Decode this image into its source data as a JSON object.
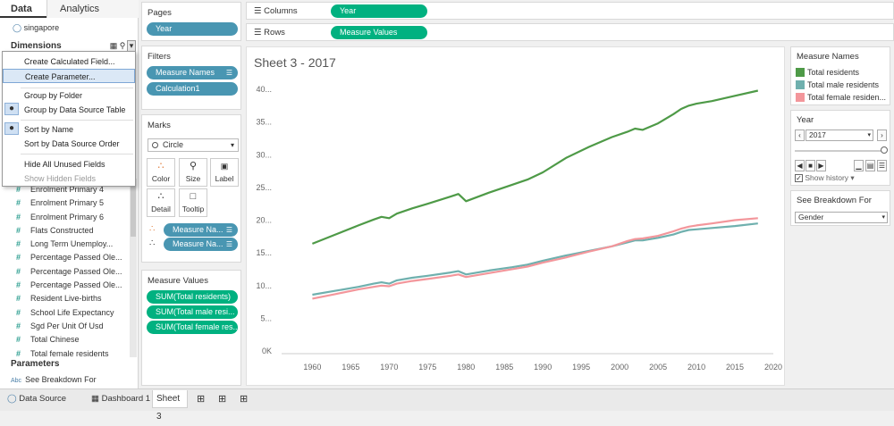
{
  "data_pane": {
    "tabs": [
      "Data",
      "Analytics"
    ],
    "datasource": "singapore",
    "dimensions_label": "Dimensions",
    "fields": [
      "Enrolment Primary 4",
      "Enrolment Primary 5",
      "Enrolment Primary 6",
      "Flats Constructed",
      "Long Term Unemploy...",
      "Percentage Passed Ole...",
      "Percentage Passed Ole...",
      "Percentage Passed Ole...",
      "Resident Live-births",
      "School Life Expectancy",
      "Sgd Per Unit Of Usd",
      "Total Chinese",
      "Total female residents"
    ],
    "parameters_label": "Parameters",
    "parameter": "See Breakdown For",
    "parameter_type": "Abc"
  },
  "context_menu": {
    "items": [
      "Create Calculated Field...",
      "Create Parameter...",
      "Group by Folder",
      "Group by Data Source Table",
      "Sort by Name",
      "Sort by Data Source Order",
      "Hide All Unused Fields",
      "Show Hidden Fields"
    ],
    "hovered": "Create Parameter...",
    "checked": [
      "Group by Data Source Table",
      "Sort by Name"
    ],
    "disabled": [
      "Show Hidden Fields"
    ]
  },
  "shelves": {
    "pages": {
      "title": "Pages",
      "pill": "Year"
    },
    "filters": {
      "title": "Filters",
      "pills": [
        "Measure Names",
        "Calculation1"
      ]
    },
    "marks": {
      "title": "Marks",
      "type": "Circle",
      "buttons": [
        "Color",
        "Size",
        "Label",
        "Detail",
        "Tooltip"
      ],
      "pills": [
        "Measure Na...",
        "Measure Na..."
      ]
    },
    "measure_values": {
      "title": "Measure Values",
      "pills": [
        "SUM(Total residents)",
        "SUM(Total male resi...",
        "SUM(Total female res..."
      ]
    },
    "columns": {
      "label": "Columns",
      "pill": "Year"
    },
    "rows": {
      "label": "Rows",
      "pill": "Measure Values"
    }
  },
  "sheet_title": "Sheet 3 - 2017",
  "chart_data": {
    "type": "line",
    "x_ticks": [
      "1960",
      "1965",
      "1970",
      "1975",
      "1980",
      "1985",
      "1990",
      "1995",
      "2000",
      "2005",
      "2010",
      "2015",
      "2020"
    ],
    "y_ticks": [
      "0K",
      "5...",
      "10...",
      "15...",
      "20...",
      "25...",
      "30...",
      "35...",
      "40..."
    ],
    "xlim": [
      1956,
      2020
    ],
    "ylim": [
      0,
      40
    ],
    "grid": false,
    "series": [
      {
        "name": "Total residents",
        "color": "#4e9a47",
        "x": [
          1960,
          1963,
          1966,
          1968,
          1969,
          1970,
          1971,
          1973,
          1975,
          1978,
          1979,
          1980,
          1983,
          1986,
          1988,
          1990,
          1993,
          1996,
          1999,
          2001,
          2002,
          2003,
          2005,
          2007,
          2008,
          2009,
          2010,
          2012,
          2015,
          2018
        ],
        "y": [
          16.4,
          17.8,
          19.2,
          20.1,
          20.5,
          20.3,
          21.0,
          21.8,
          22.5,
          23.6,
          24.0,
          22.9,
          24.2,
          25.4,
          26.2,
          27.3,
          29.5,
          31.2,
          32.7,
          33.5,
          34.0,
          33.8,
          34.8,
          36.2,
          37.0,
          37.5,
          37.8,
          38.2,
          39.0,
          39.8
        ]
      },
      {
        "name": "Total male residents",
        "color": "#6fb0ae",
        "x": [
          1960,
          1963,
          1966,
          1968,
          1969,
          1970,
          1971,
          1973,
          1975,
          1978,
          1979,
          1980,
          1983,
          1986,
          1988,
          1990,
          1993,
          1996,
          1999,
          2001,
          2002,
          2003,
          2005,
          2007,
          2008,
          2009,
          2010,
          2012,
          2015,
          2018
        ],
        "y": [
          8.6,
          9.2,
          9.8,
          10.3,
          10.5,
          10.3,
          10.8,
          11.2,
          11.5,
          12.0,
          12.2,
          11.7,
          12.3,
          12.8,
          13.2,
          13.8,
          14.6,
          15.3,
          16.0,
          16.6,
          16.9,
          16.9,
          17.3,
          17.8,
          18.2,
          18.5,
          18.6,
          18.8,
          19.1,
          19.5
        ]
      },
      {
        "name": "Total female residents",
        "color": "#f3969b",
        "x": [
          1960,
          1963,
          1966,
          1968,
          1969,
          1970,
          1971,
          1973,
          1975,
          1978,
          1979,
          1980,
          1983,
          1986,
          1988,
          1990,
          1993,
          1996,
          1999,
          2001,
          2002,
          2003,
          2005,
          2007,
          2008,
          2009,
          2010,
          2012,
          2015,
          2018
        ],
        "y": [
          8.0,
          8.7,
          9.4,
          9.8,
          10.0,
          9.9,
          10.3,
          10.7,
          11.0,
          11.5,
          11.7,
          11.3,
          11.9,
          12.5,
          12.9,
          13.5,
          14.3,
          15.2,
          16.0,
          16.8,
          17.1,
          17.2,
          17.6,
          18.3,
          18.7,
          19.0,
          19.2,
          19.5,
          20.0,
          20.3
        ]
      }
    ]
  },
  "legend": {
    "title": "Measure Names",
    "items": [
      {
        "label": "Total residents",
        "color": "#4e9a47"
      },
      {
        "label": "Total male residents",
        "color": "#6fb0ae"
      },
      {
        "label": "Total female residen...",
        "color": "#f3969b"
      }
    ]
  },
  "year_filter": {
    "title": "Year",
    "value": "2017",
    "show_history": "Show history"
  },
  "breakdown": {
    "title": "See Breakdown For",
    "value": "Gender"
  },
  "bottom_tabs": {
    "data_source": "Data Source",
    "dashboard": "Dashboard 1",
    "sheet": "Sheet 3"
  }
}
